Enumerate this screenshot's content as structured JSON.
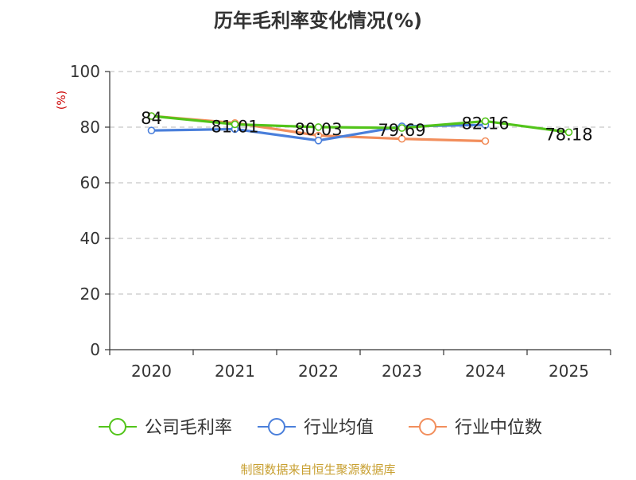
{
  "chart_data": {
    "type": "line",
    "title": "历年毛利率变化情况(%)",
    "ylabel": "(%)",
    "categories": [
      "2020",
      "2021",
      "2022",
      "2023",
      "2024",
      "2025"
    ],
    "ylim": [
      0,
      100
    ],
    "yticks": [
      0,
      20,
      40,
      60,
      80,
      100
    ],
    "grid": true,
    "legend_position": "bottom",
    "series": [
      {
        "name": "公司毛利率",
        "color": "#52c41a",
        "values": [
          84,
          81.01,
          80.03,
          79.69,
          82.16,
          78.18
        ],
        "labels": [
          "84",
          "81.01",
          "80.03",
          "79.69",
          "82.16",
          "78.18"
        ]
      },
      {
        "name": "行业均值",
        "color": "#4a7fdb",
        "values": [
          78.8,
          79.3,
          75.2,
          80.3,
          80.8,
          null
        ]
      },
      {
        "name": "行业中位数",
        "color": "#f28e5c",
        "values": [
          84.0,
          81.5,
          77.0,
          75.8,
          75.0,
          null
        ]
      }
    ],
    "source": "制图数据来自恒生聚源数据库"
  }
}
